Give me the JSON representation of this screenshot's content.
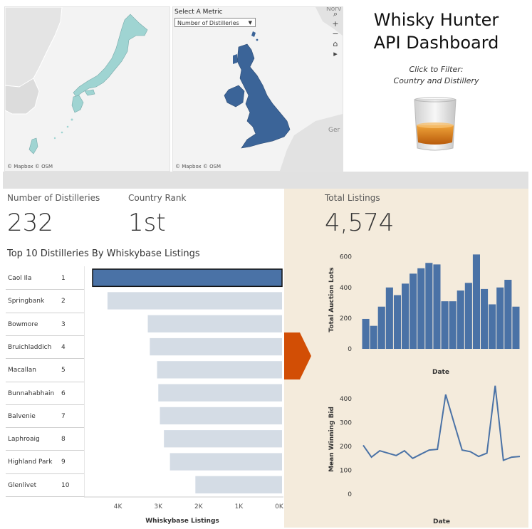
{
  "maps": {
    "left": {
      "attribution": "© Mapbox © OSM"
    },
    "right": {
      "metric_label": "Select A Metric",
      "metric_value": "Number of Distilleries",
      "attribution": "© Mapbox © OSM",
      "place_norway": "Norv",
      "place_germany": "Ger"
    }
  },
  "header": {
    "title_line1": "Whisky Hunter",
    "title_line2": "API Dashboard",
    "hint_line1": "Click to Filter:",
    "hint_line2": "Country and Distillery"
  },
  "kpis": {
    "distilleries": {
      "label": "Number of Distilleries",
      "value": "232"
    },
    "country_rank": {
      "label": "Country Rank",
      "value": "1st"
    },
    "total_listings": {
      "label": "Total Listings",
      "value": "4,574"
    }
  },
  "top10": {
    "title": "Top 10 Distilleries By Whiskybase Listings",
    "selected": "Caol Ila",
    "xlabel": "Whiskybase Listings"
  },
  "colors": {
    "accent": "#4a72a6",
    "bar_light": "#d4dce5",
    "arrow": "#d24e05",
    "map_uk": "#3b6498",
    "map_japan": "#9fd4d2",
    "panel": "#f4ebdc"
  },
  "chart_data": [
    {
      "type": "bar",
      "orientation": "horizontal",
      "title": "Top 10 Distilleries By Whiskybase Listings",
      "xlabel": "Whiskybase Listings",
      "categories": [
        "Caol Ila",
        "Springbank",
        "Bowmore",
        "Bruichladdich",
        "Macallan",
        "Bunnahabhain",
        "Balvenie",
        "Laphroaig",
        "Highland Park",
        "Glenlivet"
      ],
      "ranks": [
        "1",
        "2",
        "3",
        "4",
        "5",
        "6",
        "7",
        "8",
        "9",
        "10"
      ],
      "values": [
        4700,
        4330,
        3330,
        3280,
        3100,
        3070,
        3030,
        2930,
        2780,
        2150
      ],
      "xlim": [
        0,
        4700
      ],
      "reversed_axis": true,
      "ticks": [
        4000,
        3000,
        2000,
        1000,
        0
      ],
      "tick_labels": [
        "4K",
        "3K",
        "2K",
        "1K",
        "0K"
      ]
    },
    {
      "type": "bar",
      "xlabel": "Date",
      "ylabel": "Total Auction Lots",
      "ylim": [
        0,
        640
      ],
      "ticks": [
        0,
        200,
        400,
        600
      ],
      "values": [
        195,
        150,
        275,
        400,
        350,
        425,
        490,
        525,
        560,
        550,
        310,
        310,
        380,
        430,
        615,
        390,
        290,
        400,
        450,
        275
      ]
    },
    {
      "type": "line",
      "xlabel": "Date",
      "ylabel": "Mean Winning Bid",
      "ylim": [
        0,
        460
      ],
      "ticks": [
        0,
        100,
        200,
        300,
        400
      ],
      "values": [
        205,
        155,
        182,
        172,
        162,
        182,
        150,
        168,
        185,
        188,
        418,
        300,
        185,
        178,
        158,
        172,
        455,
        142,
        155,
        158
      ]
    }
  ]
}
